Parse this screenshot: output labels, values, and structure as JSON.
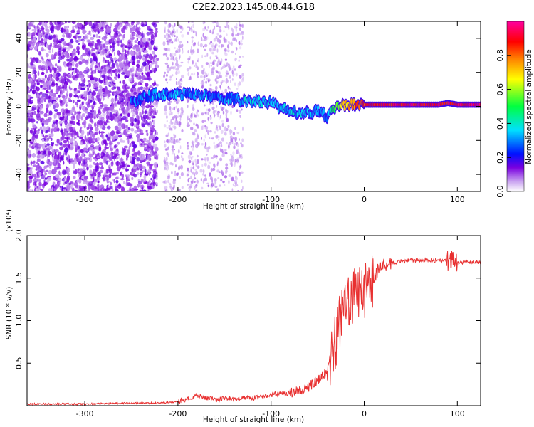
{
  "title": "C2E2.2023.145.08.44.G18",
  "chart_data": [
    {
      "type": "heatmap",
      "xlabel": "Height of straight line (km)",
      "ylabel": "Frequency (Hz)",
      "xlim": [
        -362,
        125
      ],
      "ylim": [
        -50,
        50
      ],
      "xticks": [
        -300,
        -200,
        -100,
        0,
        100
      ],
      "xtick_labels": [
        "-300",
        "-200",
        "-100",
        "0",
        "100"
      ],
      "yticks": [
        -40,
        -20,
        0,
        20,
        40
      ],
      "ytick_labels": [
        "-40",
        "-20",
        "0",
        "20",
        "40"
      ],
      "colorbar": {
        "label": "Normalized spectral amplitude",
        "range": [
          0,
          1
        ],
        "ticks": [
          0.0,
          0.2,
          0.4,
          0.6,
          0.8
        ],
        "tick_labels": [
          "0.0",
          "0.2",
          "0.4",
          "0.6",
          "0.8"
        ],
        "colors": [
          "#ffffff",
          "#c8a0f0",
          "#7a00e0",
          "#0010ff",
          "#00e0ff",
          "#00ff40",
          "#ffff00",
          "#ff8000",
          "#ff0000",
          "#ff00a0"
        ]
      },
      "signal_track": {
        "height": [
          -250,
          -225,
          -200,
          -175,
          -150,
          -125,
          -100,
          -80,
          -60,
          -50,
          -45,
          -40,
          -35,
          -30,
          -20,
          -10,
          0,
          20,
          50,
          80,
          90,
          100,
          125
        ],
        "frequency": [
          3,
          7,
          7,
          7,
          5,
          3,
          2,
          -3,
          -4,
          -3,
          -2,
          -8,
          -3,
          0,
          1,
          1,
          1,
          1,
          1,
          1,
          2,
          1,
          1
        ],
        "amplitude": [
          0.25,
          0.3,
          0.3,
          0.3,
          0.3,
          0.35,
          0.35,
          0.35,
          0.35,
          0.3,
          0.3,
          0.3,
          0.45,
          0.55,
          0.7,
          0.8,
          0.85,
          0.9,
          0.9,
          0.9,
          0.9,
          0.9,
          0.9
        ]
      }
    },
    {
      "type": "line",
      "xlabel": "Height of straight line (km)",
      "ylabel": "SNR (10 * v/v)",
      "y_multiplier": "(x10⁴)",
      "xlim": [
        -362,
        125
      ],
      "ylim": [
        0,
        2.0
      ],
      "xticks": [
        -300,
        -200,
        -100,
        0,
        100
      ],
      "xtick_labels": [
        "-300",
        "-200",
        "-100",
        "0",
        "100"
      ],
      "yticks": [
        0.5,
        1.0,
        1.5,
        2.0
      ],
      "ytick_labels": [
        "0.5",
        "1.0",
        "1.5",
        "2.0"
      ],
      "series": [
        {
          "color": "#e83030",
          "x": [
            -362,
            -300,
            -250,
            -220,
            -200,
            -190,
            -180,
            -170,
            -160,
            -150,
            -140,
            -130,
            -120,
            -110,
            -100,
            -90,
            -80,
            -70,
            -60,
            -50,
            -40,
            -35,
            -30,
            -25,
            -20,
            -15,
            -10,
            -5,
            0,
            5,
            10,
            15,
            20,
            30,
            40,
            50,
            60,
            70,
            80,
            90,
            95,
            100,
            110,
            125
          ],
          "y": [
            0.02,
            0.02,
            0.03,
            0.03,
            0.05,
            0.08,
            0.12,
            0.09,
            0.07,
            0.08,
            0.08,
            0.09,
            0.09,
            0.1,
            0.13,
            0.14,
            0.15,
            0.18,
            0.22,
            0.3,
            0.4,
            0.55,
            0.8,
            1.0,
            1.15,
            1.25,
            1.3,
            1.3,
            1.35,
            1.45,
            1.5,
            1.6,
            1.65,
            1.68,
            1.7,
            1.71,
            1.71,
            1.71,
            1.7,
            1.7,
            1.72,
            1.68,
            1.69,
            1.68
          ]
        }
      ]
    }
  ]
}
